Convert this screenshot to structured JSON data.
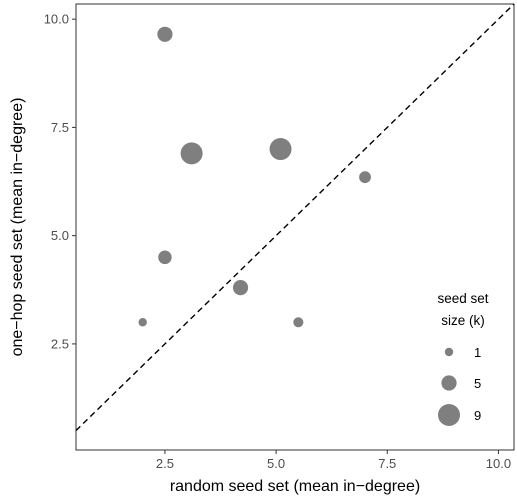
{
  "chart_data": {
    "type": "scatter",
    "xlabel": "random seed set (mean in−degree)",
    "ylabel": "one−hop seed set (mean in−degree)",
    "xlim": [
      0.5,
      10.35
    ],
    "ylim": [
      0.05,
      10.35
    ],
    "xticks": [
      "2.5",
      "5.0",
      "7.5",
      "10.0"
    ],
    "yticks": [
      "2.5",
      "5.0",
      "7.5",
      "10.0"
    ],
    "reference_line": "y = x (dashed)",
    "grid": false,
    "point_color": "#7f7f7f",
    "points": [
      {
        "x": 2.5,
        "y": 9.65,
        "size_k": 5
      },
      {
        "x": 3.1,
        "y": 6.9,
        "size_k": 9
      },
      {
        "x": 5.1,
        "y": 7.0,
        "size_k": 9
      },
      {
        "x": 7.0,
        "y": 6.35,
        "size_k": 3
      },
      {
        "x": 2.5,
        "y": 4.5,
        "size_k": 4
      },
      {
        "x": 4.2,
        "y": 3.8,
        "size_k": 5
      },
      {
        "x": 2.0,
        "y": 3.0,
        "size_k": 1
      },
      {
        "x": 5.5,
        "y": 3.0,
        "size_k": 2
      }
    ],
    "legend": {
      "title_line1": "seed set",
      "title_line2": "size (k)",
      "entries": [
        {
          "label": "1",
          "size_k": 1
        },
        {
          "label": "5",
          "size_k": 5
        },
        {
          "label": "9",
          "size_k": 9
        }
      ],
      "placement": "right"
    }
  }
}
